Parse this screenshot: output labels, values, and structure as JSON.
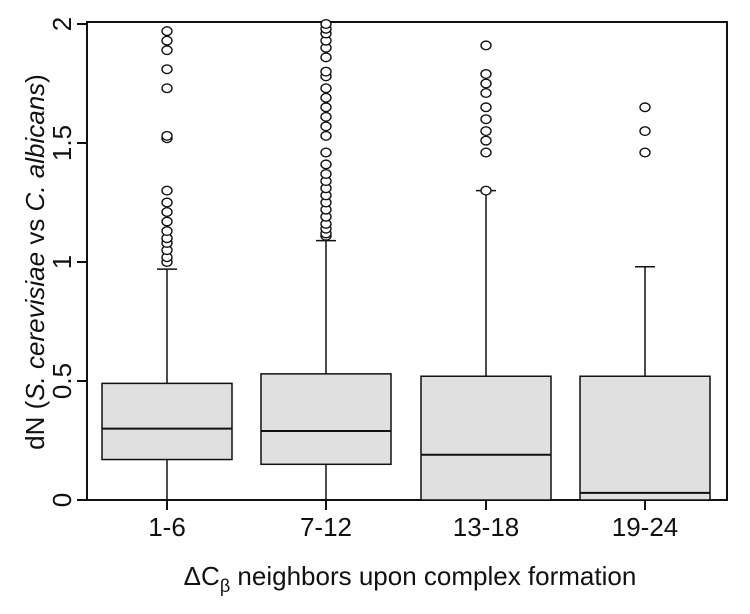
{
  "chart_data": {
    "type": "box",
    "xlabel_main": "ΔC",
    "xlabel_sub": "β",
    "xlabel_rest": " neighbors upon complex formation",
    "ylabel_prefix": "dN (",
    "ylabel_italic1": "S. cerevisiae",
    "ylabel_mid": " vs ",
    "ylabel_italic2": "C. albicans",
    "ylabel_suffix": ")",
    "ylim": [
      0,
      2
    ],
    "yticks": [
      {
        "value": 0,
        "label": "0"
      },
      {
        "value": 0.5,
        "label": "0.5"
      },
      {
        "value": 1,
        "label": "1"
      },
      {
        "value": 1.5,
        "label": "1.5"
      },
      {
        "value": 2,
        "label": "2"
      }
    ],
    "categories": [
      "1-6",
      "7-12",
      "13-18",
      "19-24"
    ],
    "boxes": [
      {
        "category": "1-6",
        "whisker_low": 0,
        "q1": 0.17,
        "median": 0.3,
        "q3": 0.49,
        "whisker_high": 0.97,
        "outliers": [
          1.0,
          1.02,
          1.05,
          1.08,
          1.1,
          1.13,
          1.17,
          1.21,
          1.25,
          1.3,
          1.52,
          1.53,
          1.73,
          1.81,
          1.89,
          1.93,
          1.97
        ]
      },
      {
        "category": "7-12",
        "whisker_low": 0,
        "q1": 0.15,
        "median": 0.29,
        "q3": 0.53,
        "whisker_high": 1.09,
        "outliers": [
          1.11,
          1.12,
          1.14,
          1.16,
          1.19,
          1.22,
          1.25,
          1.28,
          1.31,
          1.34,
          1.37,
          1.41,
          1.46,
          1.53,
          1.57,
          1.61,
          1.65,
          1.69,
          1.73,
          1.78,
          1.8,
          1.86,
          1.9,
          1.93,
          1.96,
          1.98,
          2.0
        ]
      },
      {
        "category": "13-18",
        "whisker_low": 0,
        "q1": 0,
        "median": 0.19,
        "q3": 0.52,
        "whisker_high": 1.3,
        "outliers": [
          1.3,
          1.46,
          1.51,
          1.55,
          1.6,
          1.65,
          1.71,
          1.75,
          1.79,
          1.91
        ]
      },
      {
        "category": "19-24",
        "whisker_low": 0,
        "q1": 0,
        "median": 0.03,
        "q3": 0.52,
        "whisker_high": 0.98,
        "outliers": [
          1.46,
          1.55,
          1.65
        ]
      }
    ],
    "box_fill": "#e0e0e0",
    "line_color": "#111111",
    "grid": false,
    "legend": "none"
  }
}
